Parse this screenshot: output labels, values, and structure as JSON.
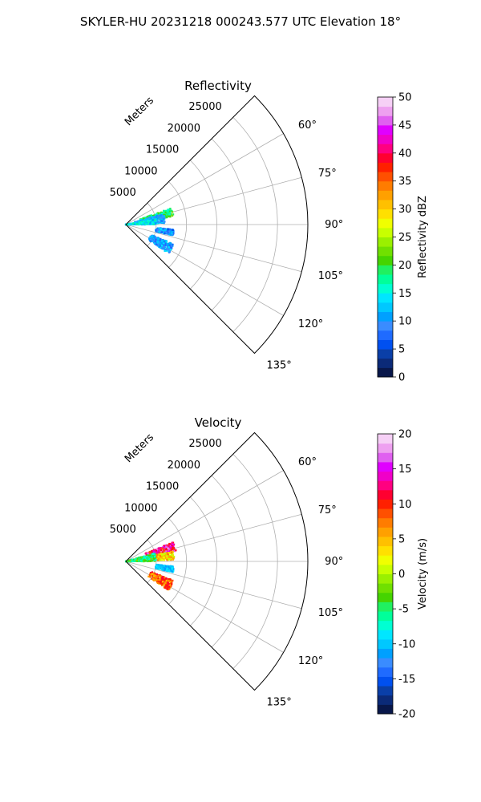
{
  "figure": {
    "suptitle": "SKYLER-HU  20231218  000243.577 UTC Elevation 18°"
  },
  "chart_data": [
    {
      "type": "heatmap",
      "projection": "polar-sector",
      "title": "Reflectivity",
      "range_label": "Meters",
      "range_ticks": [
        5000,
        10000,
        15000,
        20000,
        25000
      ],
      "range_max": 30000,
      "azimuth_range": [
        45,
        135
      ],
      "azimuth_ticks": [
        60,
        75,
        90,
        105,
        120,
        135
      ],
      "azimuth_tick_labels": [
        "60°",
        "75°",
        "90°",
        "105°",
        "120°",
        "135°"
      ],
      "grid": true,
      "colorbar": {
        "label": "Reflectivity dBZ",
        "vmin": 0,
        "vmax": 50,
        "ticks": [
          0,
          5,
          10,
          15,
          20,
          25,
          30,
          35,
          40,
          45,
          50
        ],
        "colors": [
          "#08174a",
          "#0b2a78",
          "#0a3fa8",
          "#0050f0",
          "#1f6bff",
          "#3a8cff",
          "#00a0ff",
          "#00c8ff",
          "#00e6ff",
          "#00ffd2",
          "#00ff9a",
          "#20f060",
          "#45d400",
          "#70e000",
          "#9af000",
          "#c8ff00",
          "#f0ff00",
          "#ffe000",
          "#ffc000",
          "#ffa000",
          "#ff7c00",
          "#ff5000",
          "#ff2000",
          "#ff0030",
          "#ff0080",
          "#f000c8",
          "#e000ff",
          "#e060f0",
          "#eea0f0",
          "#f6d0f6"
        ]
      },
      "clusters": [
        {
          "az": [
            70,
            80
          ],
          "range": [
            2500,
            8000
          ],
          "value_range": [
            16,
            22
          ]
        },
        {
          "az": [
            74,
            88
          ],
          "range": [
            1500,
            6500
          ],
          "value_range": [
            8,
            14
          ]
        },
        {
          "az": [
            80,
            90
          ],
          "range": [
            0,
            5000
          ],
          "value_range": [
            10,
            18
          ]
        },
        {
          "az": [
            96,
            103
          ],
          "range": [
            5000,
            8000
          ],
          "value_range": [
            6,
            14
          ]
        },
        {
          "az": [
            112,
            124
          ],
          "range": [
            4500,
            8500
          ],
          "value_range": [
            7,
            14
          ]
        }
      ]
    },
    {
      "type": "heatmap",
      "projection": "polar-sector",
      "title": "Velocity",
      "range_label": "Meters",
      "range_ticks": [
        5000,
        10000,
        15000,
        20000,
        25000
      ],
      "range_max": 30000,
      "azimuth_range": [
        45,
        135
      ],
      "azimuth_ticks": [
        60,
        75,
        90,
        105,
        120,
        135
      ],
      "azimuth_tick_labels": [
        "60°",
        "75°",
        "90°",
        "105°",
        "120°",
        "135°"
      ],
      "grid": true,
      "colorbar": {
        "label": "Velocity (m/s)",
        "vmin": -20,
        "vmax": 20,
        "ticks": [
          -20,
          -15,
          -10,
          -5,
          0,
          5,
          10,
          15,
          20
        ],
        "colors": [
          "#08174a",
          "#0b2a78",
          "#0a3fa8",
          "#0050f0",
          "#1f6bff",
          "#3a8cff",
          "#00a0ff",
          "#00c8ff",
          "#00e6ff",
          "#00ffd2",
          "#00ff9a",
          "#20f060",
          "#45d400",
          "#70e000",
          "#9af000",
          "#c8ff00",
          "#f0ff00",
          "#ffe000",
          "#ffc000",
          "#ffa000",
          "#ff7c00",
          "#ff5000",
          "#ff2000",
          "#ff0030",
          "#ff0080",
          "#f000c8",
          "#e000ff",
          "#e060f0",
          "#eea0f0",
          "#f6d0f6"
        ]
      },
      "clusters": [
        {
          "az": [
            68,
            78
          ],
          "range": [
            3500,
            8500
          ],
          "value_range": [
            8,
            18
          ]
        },
        {
          "az": [
            78,
            88
          ],
          "range": [
            3000,
            8000
          ],
          "value_range": [
            0,
            8
          ]
        },
        {
          "az": [
            74,
            90
          ],
          "range": [
            0,
            5000
          ],
          "value_range": [
            -8,
            -2
          ]
        },
        {
          "az": [
            96,
            103
          ],
          "range": [
            5000,
            8000
          ],
          "value_range": [
            -12,
            -8
          ]
        },
        {
          "az": [
            112,
            124
          ],
          "range": [
            4500,
            8500
          ],
          "value_range": [
            4,
            12
          ]
        }
      ]
    }
  ]
}
